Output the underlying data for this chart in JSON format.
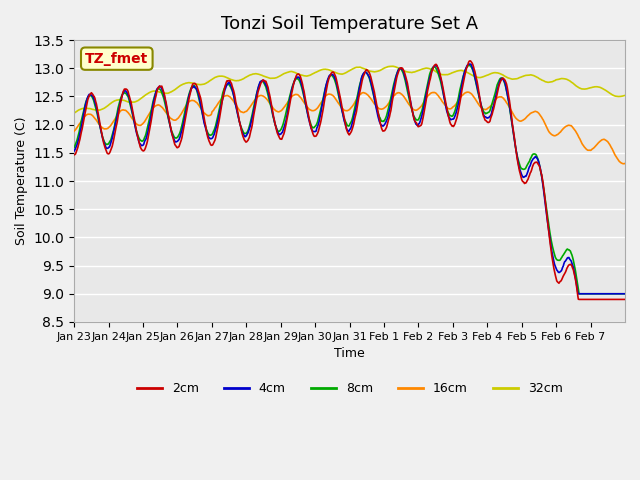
{
  "title": "Tonzi Soil Temperature Set A",
  "xlabel": "Time",
  "ylabel": "Soil Temperature (C)",
  "annotation": "TZ_fmet",
  "ylim": [
    8.5,
    13.5
  ],
  "yticks": [
    8.5,
    9.0,
    9.5,
    10.0,
    10.5,
    11.0,
    11.5,
    12.0,
    12.5,
    13.0,
    13.5
  ],
  "xtick_labels": [
    "Jan 23",
    "Jan 24",
    "Jan 25",
    "Jan 26",
    "Jan 27",
    "Jan 28",
    "Jan 29",
    "Jan 30",
    "Jan 31",
    "Feb 1",
    "Feb 2",
    "Feb 3",
    "Feb 4",
    "Feb 5",
    "Feb 6",
    "Feb 7"
  ],
  "series_colors": {
    "2cm": "#cc0000",
    "4cm": "#0000cc",
    "8cm": "#00aa00",
    "16cm": "#ff8800",
    "32cm": "#cccc00"
  },
  "series_labels": [
    "2cm",
    "4cm",
    "8cm",
    "16cm",
    "32cm"
  ],
  "plot_bg_color": "#e8e8e8",
  "fig_bg_color": "#f0f0f0",
  "title_fontsize": 13,
  "annotation_bg": "#ffffcc",
  "annotation_border": "#888800",
  "annotation_text_color": "#cc0000"
}
